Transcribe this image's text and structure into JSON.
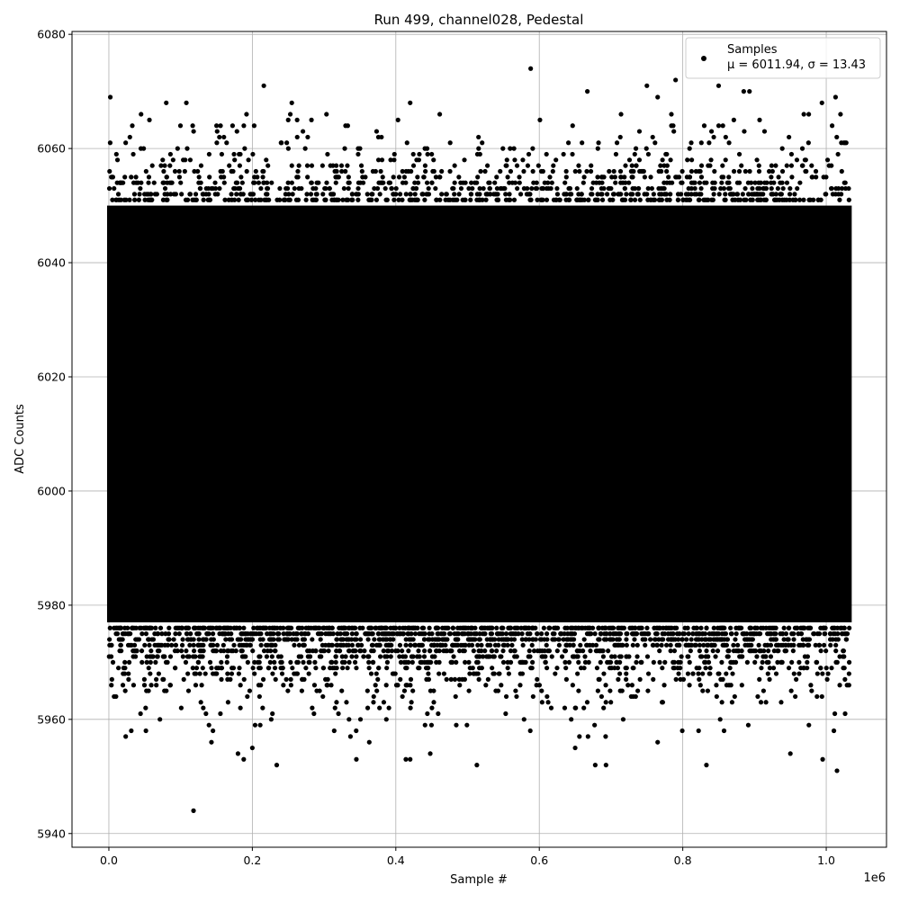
{
  "chart_data": {
    "type": "scatter",
    "title": "Run 499, channel028, Pedestal",
    "xlabel": "Sample #",
    "ylabel": "ADC Counts",
    "x_offset_label": "1e6",
    "x_scale": 1000000,
    "xlim": [
      -0.0514,
      1.084
    ],
    "ylim": [
      5937.6,
      6080.5
    ],
    "xticks": [
      0.0,
      0.2,
      0.4,
      0.6,
      0.8,
      1.0
    ],
    "xtick_labels": [
      "0.0",
      "0.2",
      "0.4",
      "0.6",
      "0.8",
      "1.0"
    ],
    "yticks": [
      5940,
      5960,
      5980,
      6000,
      6020,
      6040,
      6060,
      6080
    ],
    "ytick_labels": [
      "5940",
      "5960",
      "5980",
      "6000",
      "6020",
      "6040",
      "6060",
      "6080"
    ],
    "grid": true,
    "marker_color": "#000000",
    "grid_color": "#b0b0b0",
    "legend": {
      "placement": "top-right",
      "entries": [
        {
          "name": "Samples",
          "stats": "μ = 6011.94, σ = 13.43"
        }
      ]
    },
    "series": [
      {
        "name": "Samples",
        "mean": 6011.94,
        "sigma": 13.43,
        "sample_x_range": [
          0,
          1.033
        ],
        "dense_band": [
          5977,
          6050
        ],
        "outliers": [
          [
            0.118,
            5944
          ],
          [
            0.588,
            6074
          ],
          [
            0.79,
            6072
          ],
          [
            0.216,
            6071
          ],
          [
            0.75,
            6071
          ],
          [
            0.85,
            6071
          ],
          [
            0.234,
            5952
          ],
          [
            0.513,
            5952
          ],
          [
            0.678,
            5952
          ],
          [
            0.693,
            5952
          ],
          [
            0.833,
            5952
          ],
          [
            1.015,
            5951
          ],
          [
            0.002,
            6069
          ],
          [
            0.667,
            6070
          ],
          [
            0.765,
            6069
          ],
          [
            0.885,
            6070
          ],
          [
            0.893,
            6070
          ],
          [
            1.013,
            6069
          ],
          [
            0.994,
            6068
          ],
          [
            0.08,
            6068
          ],
          [
            0.108,
            6068
          ],
          [
            0.255,
            6068
          ],
          [
            0.42,
            6068
          ],
          [
            0.414,
            5953
          ],
          [
            0.42,
            5953
          ],
          [
            0.345,
            5953
          ],
          [
            0.995,
            5953
          ],
          [
            0.188,
            5953
          ],
          [
            0.95,
            5954
          ],
          [
            0.18,
            5954
          ],
          [
            0.448,
            5954
          ],
          [
            0.2,
            5955
          ],
          [
            0.65,
            5955
          ],
          [
            0.363,
            5956
          ],
          [
            0.143,
            5956
          ],
          [
            0.765,
            5956
          ]
        ]
      }
    ]
  }
}
